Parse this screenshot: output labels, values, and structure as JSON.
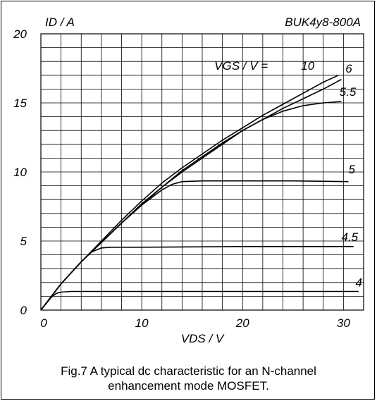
{
  "chart_data": {
    "type": "line",
    "device_label": "BUK4y8-800A",
    "ylabel": "ID / A",
    "xlabel": "VDS / V",
    "legend_label": "VGS / V =",
    "xlim": [
      0,
      32
    ],
    "ylim": [
      0,
      20
    ],
    "x_ticks": [
      0,
      10,
      20,
      30
    ],
    "y_ticks": [
      0,
      5,
      10,
      15,
      20
    ],
    "grid": true,
    "series": [
      {
        "name": "10",
        "x": [
          0,
          2,
          4,
          6,
          8,
          10,
          12,
          14,
          16,
          18,
          20,
          22,
          24,
          26,
          28,
          29.5
        ],
        "y": [
          0,
          1.9,
          3.5,
          5.0,
          6.5,
          7.9,
          9.2,
          10.3,
          11.3,
          12.3,
          13.2,
          14.1,
          14.9,
          15.7,
          16.5,
          17.0
        ]
      },
      {
        "name": "6",
        "x": [
          0,
          2,
          4,
          6,
          8,
          10,
          12,
          14,
          16,
          18,
          20,
          22,
          24,
          26,
          28,
          29.8
        ],
        "y": [
          0,
          1.9,
          3.5,
          4.9,
          6.3,
          7.7,
          8.9,
          10.1,
          11.1,
          12.1,
          13.0,
          13.8,
          14.6,
          15.3,
          16.0,
          16.7
        ]
      },
      {
        "name": "5.5",
        "x": [
          0,
          2,
          4,
          6,
          8,
          10,
          12,
          14,
          16,
          18,
          20,
          22,
          24,
          26,
          28,
          29.8
        ],
        "y": [
          0,
          1.9,
          3.5,
          4.9,
          6.3,
          7.6,
          8.9,
          10.0,
          11.0,
          12.0,
          13.0,
          13.8,
          14.4,
          14.8,
          15.0,
          15.1
        ]
      },
      {
        "name": "5",
        "x": [
          0,
          2,
          4,
          6,
          8,
          10,
          12,
          13,
          14,
          16,
          20,
          25,
          30.5
        ],
        "y": [
          0,
          1.9,
          3.5,
          4.9,
          6.3,
          7.6,
          8.7,
          9.1,
          9.3,
          9.35,
          9.35,
          9.35,
          9.3
        ]
      },
      {
        "name": "4.5",
        "x": [
          0,
          2,
          4,
          5,
          6,
          7,
          10,
          20,
          31
        ],
        "y": [
          0,
          1.9,
          3.5,
          4.2,
          4.5,
          4.55,
          4.55,
          4.6,
          4.6
        ]
      },
      {
        "name": "4",
        "x": [
          0,
          1,
          1.5,
          2,
          3,
          10,
          20,
          31.5
        ],
        "y": [
          0,
          0.9,
          1.2,
          1.3,
          1.35,
          1.35,
          1.35,
          1.35
        ]
      }
    ]
  },
  "caption": {
    "line1": "Fig.7  A typical dc characteristic for an N-channel",
    "line2": "enhancement mode MOSFET."
  }
}
